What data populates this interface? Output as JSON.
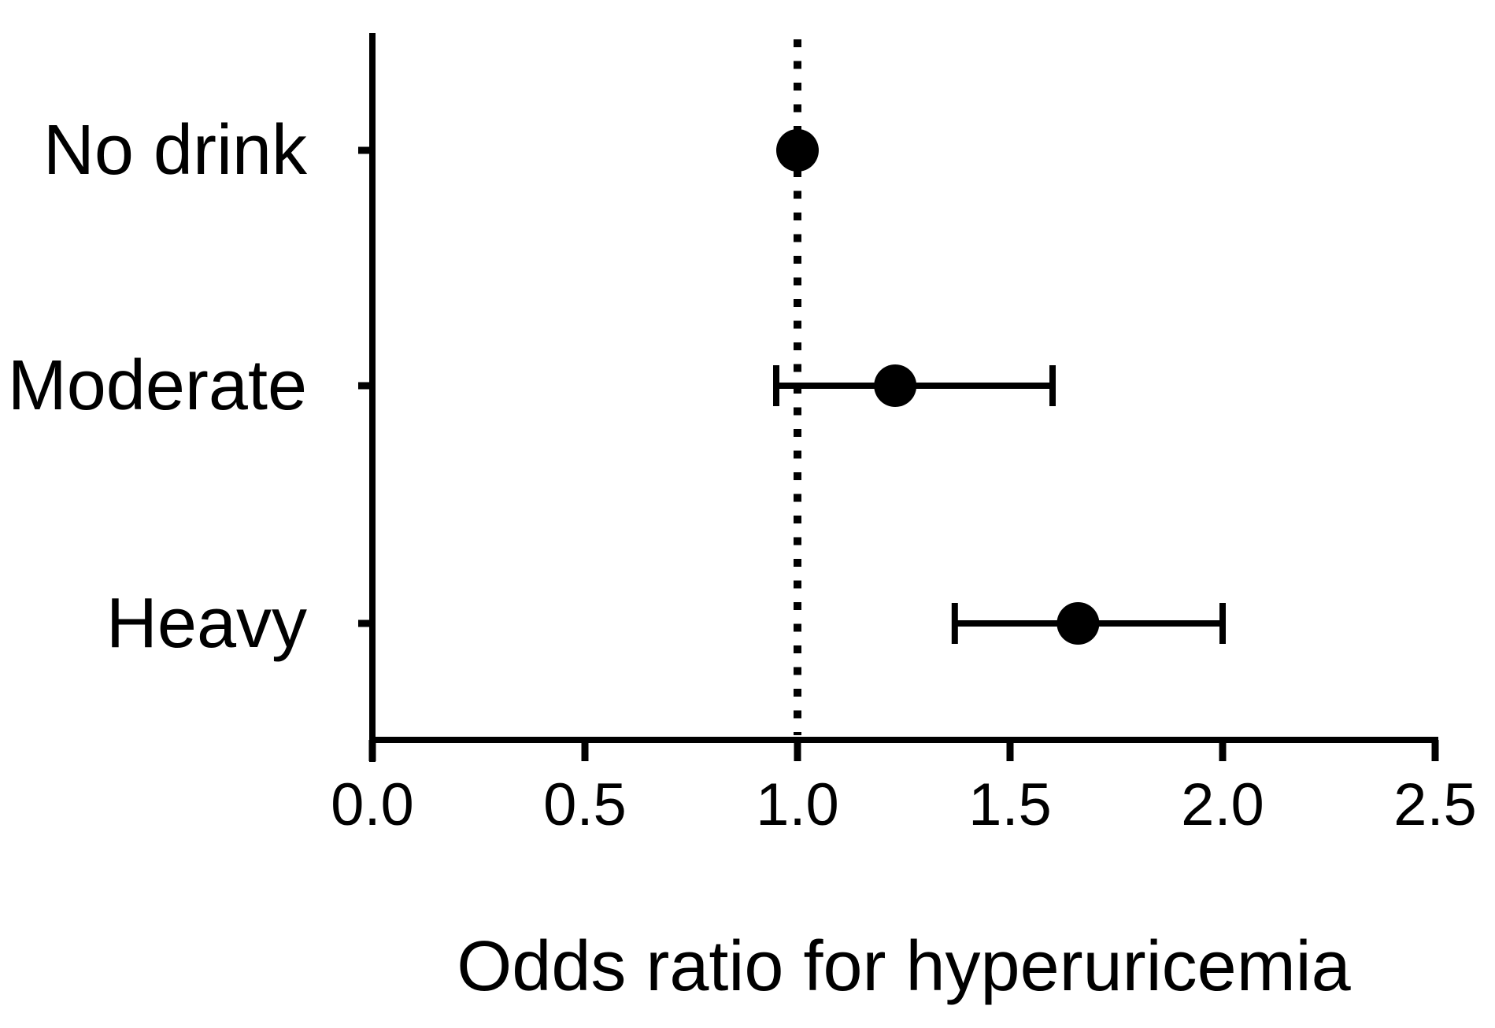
{
  "figure": {
    "background_color": "#ffffff",
    "foreground_color": "#000000"
  },
  "chart_data": {
    "type": "scatter",
    "subtype": "forest-plot-odds-ratios",
    "title": "",
    "xlabel": "Odds ratio for hyperuricemia",
    "ylabel": "",
    "categories": [
      "No drink",
      "Moderate",
      "Heavy"
    ],
    "points": [
      {
        "category": "No drink",
        "or": 1.0,
        "ci_low": null,
        "ci_high": null
      },
      {
        "category": "Moderate",
        "or": 1.23,
        "ci_low": 0.95,
        "ci_high": 1.6
      },
      {
        "category": "Heavy",
        "or": 1.66,
        "ci_low": 1.37,
        "ci_high": 2.0
      }
    ],
    "xlim": [
      0.0,
      2.5
    ],
    "x_tick_values": [
      0.0,
      0.5,
      1.0,
      1.5,
      2.0,
      2.5
    ],
    "x_tick_labels": [
      "0.0",
      "0.5",
      "1.0",
      "1.5",
      "2.0",
      "2.5"
    ],
    "reference_line": {
      "x": 1.0,
      "style": "dotted"
    },
    "grid": false,
    "legend": false,
    "marker_color": "#000000",
    "axis_color": "#000000"
  }
}
